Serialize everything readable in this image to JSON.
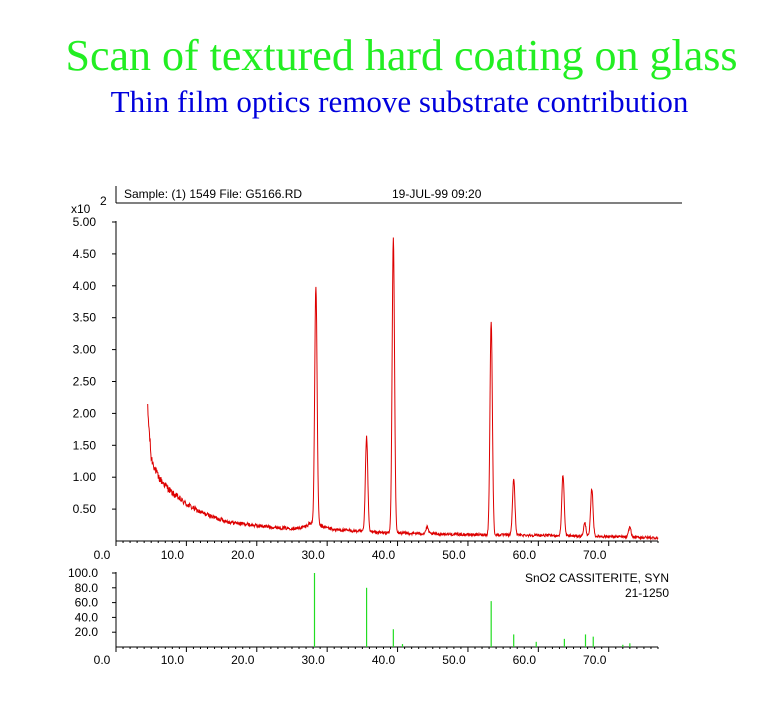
{
  "page": {
    "title": "Scan of textured hard coating on glass",
    "subtitle": "Thin film optics remove substrate contribution"
  },
  "colors": {
    "title": "#22ee22",
    "subtitle": "#0000dd",
    "pattern": "#dd0000",
    "reference": "#22dd22",
    "axis": "#000000"
  },
  "chart_data": [
    {
      "type": "line",
      "header": {
        "sample": "Sample: (1) 1549  File: G5166.RD",
        "date": "19-JUL-99  09:20"
      },
      "y_multiplier": "x10",
      "y_exponent": "2",
      "xlim": [
        0,
        77
      ],
      "ylim": [
        0,
        5.0
      ],
      "x_ticks": [
        "0.0",
        "10.0",
        "20.0",
        "30.0",
        "40.0",
        "50.0",
        "60.0",
        "70.0"
      ],
      "y_ticks": [
        "5.00",
        "4.50",
        "4.00",
        "3.50",
        "3.00",
        "2.50",
        "2.00",
        "1.50",
        "1.00",
        "0.50"
      ],
      "baseline": {
        "x": [
          4.5,
          5,
          6,
          8,
          10,
          12,
          14,
          16,
          18,
          20,
          22,
          24,
          26,
          27,
          27.5,
          31,
          35,
          38,
          42,
          50,
          60,
          70,
          77
        ],
        "y": [
          2.05,
          1.3,
          1.0,
          0.75,
          0.58,
          0.45,
          0.37,
          0.3,
          0.27,
          0.24,
          0.22,
          0.2,
          0.2,
          0.23,
          0.28,
          0.18,
          0.15,
          0.13,
          0.12,
          0.1,
          0.09,
          0.07,
          0.05
        ]
      },
      "peaks": [
        {
          "x": 28.4,
          "y": 4.0
        },
        {
          "x": 35.6,
          "y": 1.63
        },
        {
          "x": 39.4,
          "y": 4.75
        },
        {
          "x": 44.2,
          "y": 0.22
        },
        {
          "x": 53.3,
          "y": 3.45
        },
        {
          "x": 56.5,
          "y": 0.98
        },
        {
          "x": 63.5,
          "y": 1.04
        },
        {
          "x": 66.6,
          "y": 0.28
        },
        {
          "x": 67.6,
          "y": 0.82
        },
        {
          "x": 73.0,
          "y": 0.22
        }
      ]
    },
    {
      "type": "bar",
      "label_line1": "SnO2  CASSITERITE, SYN",
      "label_line2": "21-1250",
      "xlim": [
        0,
        77
      ],
      "ylim": [
        0,
        100
      ],
      "x_ticks": [
        "0.0",
        "10.0",
        "20.0",
        "30.0",
        "40.0",
        "50.0",
        "60.0",
        "70.0"
      ],
      "y_ticks": [
        "100.0",
        "80.0",
        "60.0",
        "40.0",
        "20.0"
      ],
      "lines": [
        {
          "x": 28.2,
          "y": 100
        },
        {
          "x": 35.6,
          "y": 80
        },
        {
          "x": 39.4,
          "y": 24
        },
        {
          "x": 40.7,
          "y": 4
        },
        {
          "x": 53.3,
          "y": 62
        },
        {
          "x": 56.5,
          "y": 17
        },
        {
          "x": 59.7,
          "y": 7
        },
        {
          "x": 63.7,
          "y": 11
        },
        {
          "x": 66.7,
          "y": 17
        },
        {
          "x": 67.8,
          "y": 14
        },
        {
          "x": 72.0,
          "y": 3
        },
        {
          "x": 73.0,
          "y": 5
        }
      ]
    }
  ]
}
